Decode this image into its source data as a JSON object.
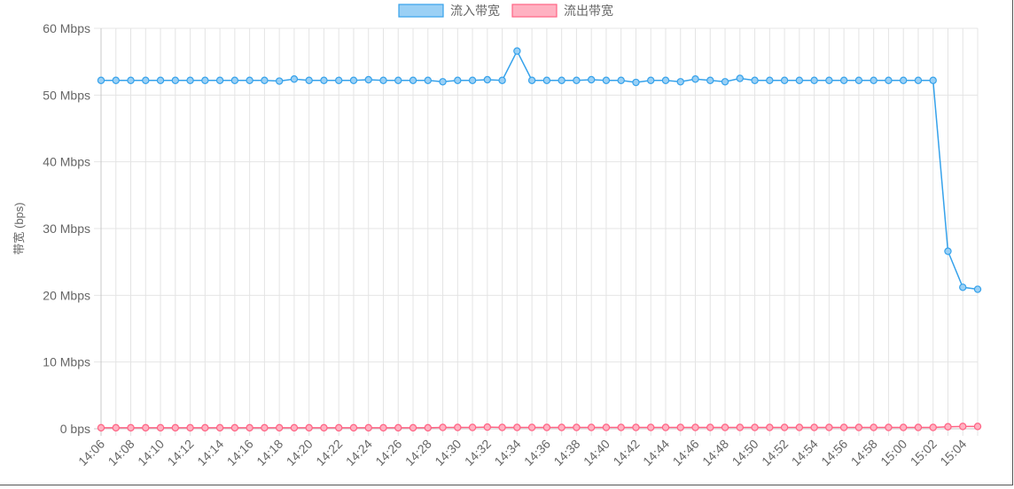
{
  "chart_data": {
    "type": "line",
    "ylabel": "带宽 (bps)",
    "ylim": [
      0,
      60000000
    ],
    "yticks": [
      {
        "value": 0,
        "label": "0 bps"
      },
      {
        "value": 10000000,
        "label": "10 Mbps"
      },
      {
        "value": 20000000,
        "label": "20 Mbps"
      },
      {
        "value": 30000000,
        "label": "30 Mbps"
      },
      {
        "value": 40000000,
        "label": "40 Mbps"
      },
      {
        "value": 50000000,
        "label": "50 Mbps"
      },
      {
        "value": 60000000,
        "label": "60 Mbps"
      }
    ],
    "legend_position": "top-center",
    "grid": true,
    "categories": [
      "14:06",
      "14:07",
      "14:08",
      "14:09",
      "14:10",
      "14:11",
      "14:12",
      "14:13",
      "14:14",
      "14:15",
      "14:16",
      "14:17",
      "14:18",
      "14:19",
      "14:20",
      "14:21",
      "14:22",
      "14:23",
      "14:24",
      "14:25",
      "14:26",
      "14:27",
      "14:28",
      "14:29",
      "14:30",
      "14:31",
      "14:32",
      "14:33",
      "14:34",
      "14:35",
      "14:36",
      "14:37",
      "14:38",
      "14:39",
      "14:40",
      "14:41",
      "14:42",
      "14:43",
      "14:44",
      "14:45",
      "14:46",
      "14:47",
      "14:48",
      "14:49",
      "14:50",
      "14:51",
      "14:52",
      "14:53",
      "14:54",
      "14:55",
      "14:56",
      "14:57",
      "14:58",
      "14:59",
      "15:00",
      "15:01",
      "15:02",
      "15:03",
      "15:04",
      "15:05"
    ],
    "tick_labels": [
      "14:06",
      "14:08",
      "14:10",
      "14:12",
      "14:14",
      "14:16",
      "14:18",
      "14:20",
      "14:22",
      "14:24",
      "14:26",
      "14:28",
      "14:30",
      "14:32",
      "14:34",
      "14:36",
      "14:38",
      "14:40",
      "14:42",
      "14:44",
      "14:46",
      "14:48",
      "14:50",
      "14:52",
      "14:54",
      "14:56",
      "14:58",
      "15:00",
      "15:02",
      "15:04"
    ],
    "series": [
      {
        "name": "流入带宽",
        "color": "#36a2eb",
        "fill": "#9ad0f5",
        "values": [
          52200000,
          52200000,
          52200000,
          52200000,
          52200000,
          52200000,
          52200000,
          52200000,
          52200000,
          52200000,
          52200000,
          52200000,
          52100000,
          52400000,
          52200000,
          52200000,
          52200000,
          52200000,
          52300000,
          52200000,
          52200000,
          52200000,
          52200000,
          52000000,
          52200000,
          52200000,
          52300000,
          52200000,
          56600000,
          52200000,
          52200000,
          52200000,
          52200000,
          52300000,
          52200000,
          52200000,
          51900000,
          52200000,
          52200000,
          52000000,
          52400000,
          52200000,
          52000000,
          52500000,
          52200000,
          52200000,
          52200000,
          52200000,
          52200000,
          52200000,
          52200000,
          52200000,
          52200000,
          52200000,
          52200000,
          52200000,
          52200000,
          26600000,
          21200000,
          20900000
        ]
      },
      {
        "name": "流出带宽",
        "color": "#ff6384",
        "fill": "#ffb1c1",
        "values": [
          150000,
          150000,
          150000,
          150000,
          150000,
          150000,
          150000,
          150000,
          150000,
          150000,
          150000,
          150000,
          150000,
          150000,
          150000,
          150000,
          150000,
          150000,
          150000,
          150000,
          150000,
          150000,
          150000,
          200000,
          200000,
          200000,
          250000,
          200000,
          200000,
          200000,
          200000,
          200000,
          200000,
          200000,
          200000,
          200000,
          200000,
          200000,
          200000,
          200000,
          200000,
          200000,
          200000,
          200000,
          200000,
          200000,
          200000,
          200000,
          200000,
          200000,
          200000,
          200000,
          200000,
          200000,
          200000,
          200000,
          200000,
          300000,
          350000,
          350000
        ]
      }
    ]
  }
}
